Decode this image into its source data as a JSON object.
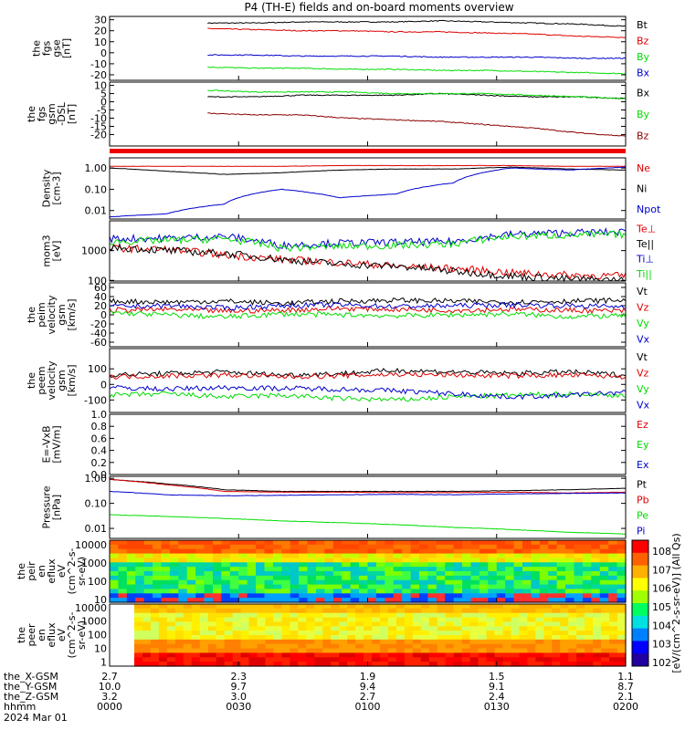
{
  "title": "P4 (TH-E) fields and on-board moments overview",
  "colors": {
    "black": "#000000",
    "red": "#dd0000",
    "green": "#00dd00",
    "blue": "#0000cc",
    "darkred": "#8b0000"
  },
  "chart_data": [
    {
      "type": "line",
      "id": "p1",
      "ylabel": [
        "the",
        "fgs",
        "gse",
        "[nT]"
      ],
      "ylim": [
        -25,
        33
      ],
      "yticks": [
        "30",
        "20",
        "10",
        "0",
        "-10",
        "-20"
      ],
      "ytick_values": [
        30,
        20,
        10,
        0,
        -10,
        -20
      ],
      "series": [
        {
          "name": "Bt",
          "color": "#000000",
          "values": [
            27,
            27,
            28,
            28,
            28,
            29,
            28,
            27,
            26,
            24
          ]
        },
        {
          "name": "Bz",
          "color": "#dd0000",
          "values": [
            22,
            21,
            20,
            20,
            19,
            19,
            18,
            17,
            15,
            14
          ]
        },
        {
          "name": "By",
          "color": "#00dd00",
          "values": [
            -13,
            -14,
            -14,
            -15,
            -15,
            -16,
            -16,
            -17,
            -18,
            -19
          ]
        },
        {
          "name": "Bx",
          "color": "#0000cc",
          "values": [
            -2,
            -2,
            -3,
            -3,
            -3,
            -4,
            -4,
            -4,
            -5,
            -5
          ]
        }
      ]
    },
    {
      "type": "line",
      "id": "p2",
      "ylabel": [
        "the",
        "fgs",
        "gsm",
        "-DSL",
        "[nT]"
      ],
      "ylim": [
        -27,
        12
      ],
      "yticks": [
        "10",
        "5",
        "0",
        "-5",
        "-10",
        "-15",
        "-20"
      ],
      "ytick_values": [
        10,
        5,
        0,
        -5,
        -10,
        -15,
        -20
      ],
      "series": [
        {
          "name": "Bx",
          "color": "#000000",
          "values": [
            3,
            3,
            4,
            4,
            4,
            5,
            4,
            3,
            3,
            2
          ]
        },
        {
          "name": "By",
          "color": "#00dd00",
          "values": [
            7,
            6,
            6,
            6,
            5,
            5,
            5,
            4,
            3,
            2
          ]
        },
        {
          "name": "Bz",
          "color": "#8b0000",
          "values": [
            -7,
            -8,
            -8,
            -10,
            -11,
            -12,
            -14,
            -16,
            -19,
            -21
          ]
        }
      ]
    },
    {
      "type": "line",
      "id": "p3",
      "scale": "log",
      "ylabel": [
        "Density",
        "[cm-3]"
      ],
      "ylim": [
        0.004,
        3
      ],
      "yticks": [
        "1.00",
        "0.10",
        "0.01"
      ],
      "ytick_values": [
        1,
        0.1,
        0.01
      ],
      "series": [
        {
          "name": "Ne",
          "color": "#dd0000",
          "values": [
            1.2,
            1.2,
            1.2,
            1.2,
            1.3,
            1.3,
            1.3,
            1.3,
            1.2,
            1.2
          ]
        },
        {
          "name": "Ni",
          "color": "#000000",
          "values": [
            1.0,
            0.7,
            0.5,
            0.6,
            0.8,
            0.9,
            0.9,
            1.1,
            0.9,
            0.8
          ]
        },
        {
          "name": "Npot",
          "color": "#0000cc",
          "values": [
            0.005,
            0.007,
            0.02,
            0.1,
            0.04,
            0.06,
            0.2,
            1.0,
            0.8,
            1.1
          ]
        }
      ]
    },
    {
      "type": "line",
      "id": "p4",
      "scale": "log",
      "ylabel": [
        "mom3",
        "[eV]"
      ],
      "ylim": [
        95,
        10000
      ],
      "yticks": [
        "1000",
        "100"
      ],
      "ytick_values": [
        1000,
        100
      ],
      "series": [
        {
          "name": "Te⊥",
          "color": "#dd0000",
          "values": [
            1200,
            1100,
            700,
            500,
            400,
            300,
            250,
            180,
            150,
            140
          ]
        },
        {
          "name": "Te||",
          "color": "#000000",
          "values": [
            1300,
            1000,
            800,
            500,
            350,
            300,
            200,
            140,
            110,
            100
          ]
        },
        {
          "name": "Ti⊥",
          "color": "#0000cc",
          "values": [
            2500,
            2600,
            3000,
            1500,
            1800,
            1900,
            2000,
            3500,
            4000,
            4200
          ]
        },
        {
          "name": "Ti||",
          "color": "#00dd00",
          "values": [
            2000,
            2200,
            2500,
            1200,
            1400,
            1500,
            1700,
            3000,
            3300,
            3500
          ]
        }
      ]
    },
    {
      "type": "line",
      "id": "p5",
      "ylabel": [
        "the",
        "peim",
        "velocity",
        "gsm",
        "[km/s]"
      ],
      "ylim": [
        -70,
        70
      ],
      "yticks": [
        "60",
        "40",
        "20",
        "0",
        "-20",
        "-40",
        "-60"
      ],
      "ytick_values": [
        60,
        40,
        20,
        0,
        -20,
        -40,
        -60
      ],
      "series": [
        {
          "name": "Vt",
          "color": "#000000",
          "values": [
            30,
            28,
            30,
            25,
            30,
            32,
            30,
            28,
            30,
            32
          ]
        },
        {
          "name": "Vz",
          "color": "#dd0000",
          "values": [
            10,
            12,
            8,
            10,
            14,
            12,
            10,
            12,
            10,
            8
          ]
        },
        {
          "name": "Vy",
          "color": "#00dd00",
          "values": [
            5,
            0,
            -5,
            2,
            0,
            -2,
            0,
            2,
            -4,
            -2
          ]
        },
        {
          "name": "Vx",
          "color": "#0000cc",
          "values": [
            18,
            20,
            15,
            20,
            22,
            18,
            20,
            22,
            20,
            18
          ]
        }
      ]
    },
    {
      "type": "line",
      "id": "p6",
      "ylabel": [
        "the",
        "peem",
        "velocity",
        "gsm",
        "[km/s]"
      ],
      "ylim": [
        -180,
        230
      ],
      "yticks": [
        "100",
        "0",
        "-100"
      ],
      "ytick_values": [
        100,
        0,
        -100
      ],
      "series": [
        {
          "name": "Vt",
          "color": "#000000",
          "values": [
            60,
            70,
            80,
            60,
            70,
            90,
            80,
            70,
            80,
            60
          ]
        },
        {
          "name": "Vz",
          "color": "#dd0000",
          "values": [
            50,
            55,
            60,
            50,
            55,
            65,
            60,
            55,
            60,
            50
          ]
        },
        {
          "name": "Vy",
          "color": "#00dd00",
          "values": [
            -70,
            -60,
            -80,
            -70,
            -90,
            -100,
            -80,
            -70,
            -60,
            -70
          ]
        },
        {
          "name": "Vx",
          "color": "#0000cc",
          "values": [
            -20,
            -30,
            -20,
            -25,
            -30,
            -40,
            -60,
            -80,
            -70,
            -50
          ]
        }
      ]
    },
    {
      "type": "line",
      "id": "p7",
      "ylabel": [
        "E=-VxB",
        "[mV/m]"
      ],
      "ylim": [
        0,
        1
      ],
      "yticks": [
        "1.0",
        "0.8",
        "0.6",
        "0.4",
        "0.2",
        "0.0"
      ],
      "ytick_values": [
        1,
        0.8,
        0.6,
        0.4,
        0.2,
        0
      ],
      "series": [
        {
          "name": "Ez",
          "color": "#dd0000",
          "values": []
        },
        {
          "name": "Ey",
          "color": "#00dd00",
          "values": []
        },
        {
          "name": "Ex",
          "color": "#0000cc",
          "values": []
        }
      ]
    },
    {
      "type": "line",
      "id": "p8",
      "scale": "log",
      "ylabel": [
        "Pressure",
        "[nPa]"
      ],
      "ylim": [
        0.004,
        1.2
      ],
      "yticks": [
        "1.00",
        "0.10",
        "0.01"
      ],
      "ytick_values": [
        1,
        0.1,
        0.01
      ],
      "series": [
        {
          "name": "Pt",
          "color": "#000000",
          "values": [
            0.9,
            0.6,
            0.35,
            0.3,
            0.3,
            0.3,
            0.3,
            0.32,
            0.35,
            0.4
          ]
        },
        {
          "name": "Pb",
          "color": "#dd0000",
          "values": [
            0.9,
            0.55,
            0.3,
            0.28,
            0.28,
            0.27,
            0.27,
            0.28,
            0.26,
            0.28
          ]
        },
        {
          "name": "Pe",
          "color": "#00dd00",
          "values": [
            0.035,
            0.03,
            0.025,
            0.02,
            0.017,
            0.014,
            0.011,
            0.009,
            0.007,
            0.006
          ]
        },
        {
          "name": "Pi",
          "color": "#0000cc",
          "values": [
            0.3,
            0.22,
            0.2,
            0.21,
            0.22,
            0.23,
            0.22,
            0.24,
            0.25,
            0.26
          ]
        }
      ]
    },
    {
      "type": "heatmap",
      "id": "p9",
      "ylabel": [
        "the",
        "peir",
        "en",
        "eflux",
        "eV",
        "(cm^2-s-",
        "sr-eV)"
      ],
      "yticks": [
        "10000",
        "1000",
        "100",
        "10"
      ],
      "ytick_values": [
        10000,
        1000,
        100,
        10
      ]
    },
    {
      "type": "heatmap",
      "id": "p10",
      "ylabel": [
        "the",
        "peer",
        "en",
        "eflux",
        "eV",
        "(cm^2-s-",
        "sr-eV)"
      ],
      "yticks": [
        "10000",
        "1000",
        "100",
        "10",
        "1"
      ],
      "ytick_values": [
        10000,
        1000,
        100,
        10,
        1
      ]
    }
  ],
  "colorbar": {
    "ticks": [
      "10^8",
      "10^7",
      "10^6",
      "10^5",
      "10^4",
      "10^3",
      "10^2"
    ],
    "label": "[eV/(cm^2-s-sr-eV)] (All Qs)"
  },
  "bottom_axis": {
    "rows": [
      {
        "label": "the_X-GSM",
        "values": [
          "2.7",
          "2.3",
          "1.9",
          "1.5",
          "1.1"
        ]
      },
      {
        "label": "the_Y-GSM",
        "values": [
          "10.0",
          "9.7",
          "9.4",
          "9.1",
          "8.7"
        ]
      },
      {
        "label": "the_Z-GSM",
        "values": [
          "3.2",
          "3.0",
          "2.7",
          "2.4",
          "2.1"
        ]
      },
      {
        "label": "hhmm",
        "values": [
          "0000",
          "0030",
          "0100",
          "0130",
          "0200"
        ]
      }
    ],
    "date": "2024 Mar 01"
  }
}
